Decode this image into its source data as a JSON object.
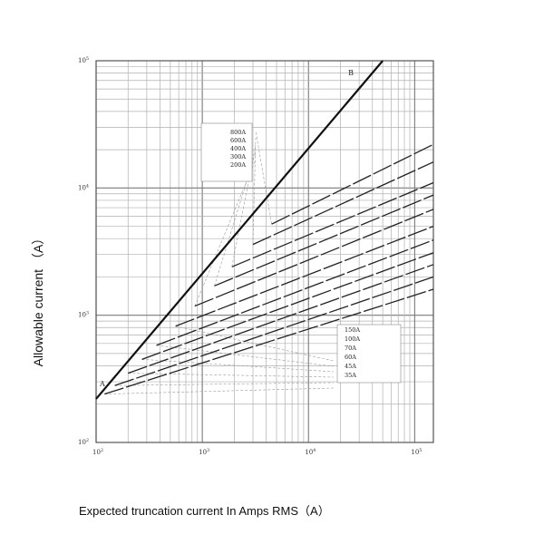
{
  "chart_data": {
    "type": "line",
    "title": "",
    "xlabel": "Expected truncation current In Amps RMS（A）",
    "ylabel": "Allowable current （A）",
    "xscale": "log",
    "yscale": "log",
    "xlim": [
      100,
      150000
    ],
    "ylim": [
      100,
      100000
    ],
    "grid": true,
    "x_ticks": [
      {
        "base": "10",
        "exp": "2",
        "value": 100
      },
      {
        "base": "10",
        "exp": "3",
        "value": 1000
      },
      {
        "base": "10",
        "exp": "4",
        "value": 10000
      },
      {
        "base": "10",
        "exp": "5",
        "value": 100000
      }
    ],
    "y_ticks": [
      {
        "base": "10",
        "exp": "2",
        "value": 100
      },
      {
        "base": "10",
        "exp": "3",
        "value": 1000
      },
      {
        "base": "10",
        "exp": "4",
        "value": 10000
      },
      {
        "base": "10",
        "exp": "5",
        "value": 100000
      }
    ],
    "reference_line": {
      "x": [
        100,
        50000
      ],
      "y": [
        220,
        100000
      ],
      "start_label": "A",
      "end_label": "B"
    },
    "legend_upper": [
      "800A",
      "600A",
      "400A",
      "300A",
      "200A"
    ],
    "legend_lower": [
      "150A",
      "100A",
      "70A",
      "60A",
      "45A",
      "35A"
    ],
    "series": [
      {
        "name": "800A",
        "x": [
          4500,
          150000
        ],
        "y": [
          5200,
          22000
        ]
      },
      {
        "name": "600A",
        "x": [
          3000,
          150000
        ],
        "y": [
          3600,
          16000
        ]
      },
      {
        "name": "400A",
        "x": [
          1900,
          150000
        ],
        "y": [
          2400,
          11000
        ]
      },
      {
        "name": "300A",
        "x": [
          1300,
          150000
        ],
        "y": [
          1700,
          8800
        ]
      },
      {
        "name": "200A",
        "x": [
          850,
          150000
        ],
        "y": [
          1180,
          6800
        ]
      },
      {
        "name": "150A",
        "x": [
          560,
          150000
        ],
        "y": [
          820,
          5000
        ]
      },
      {
        "name": "100A",
        "x": [
          370,
          150000
        ],
        "y": [
          580,
          3900
        ]
      },
      {
        "name": "70A",
        "x": [
          270,
          150000
        ],
        "y": [
          450,
          3100
        ]
      },
      {
        "name": "60A",
        "x": [
          200,
          150000
        ],
        "y": [
          350,
          2500
        ]
      },
      {
        "name": "45A",
        "x": [
          150,
          150000
        ],
        "y": [
          280,
          2000
        ]
      },
      {
        "name": "35A",
        "x": [
          120,
          150000
        ],
        "y": [
          240,
          1600
        ]
      }
    ]
  }
}
